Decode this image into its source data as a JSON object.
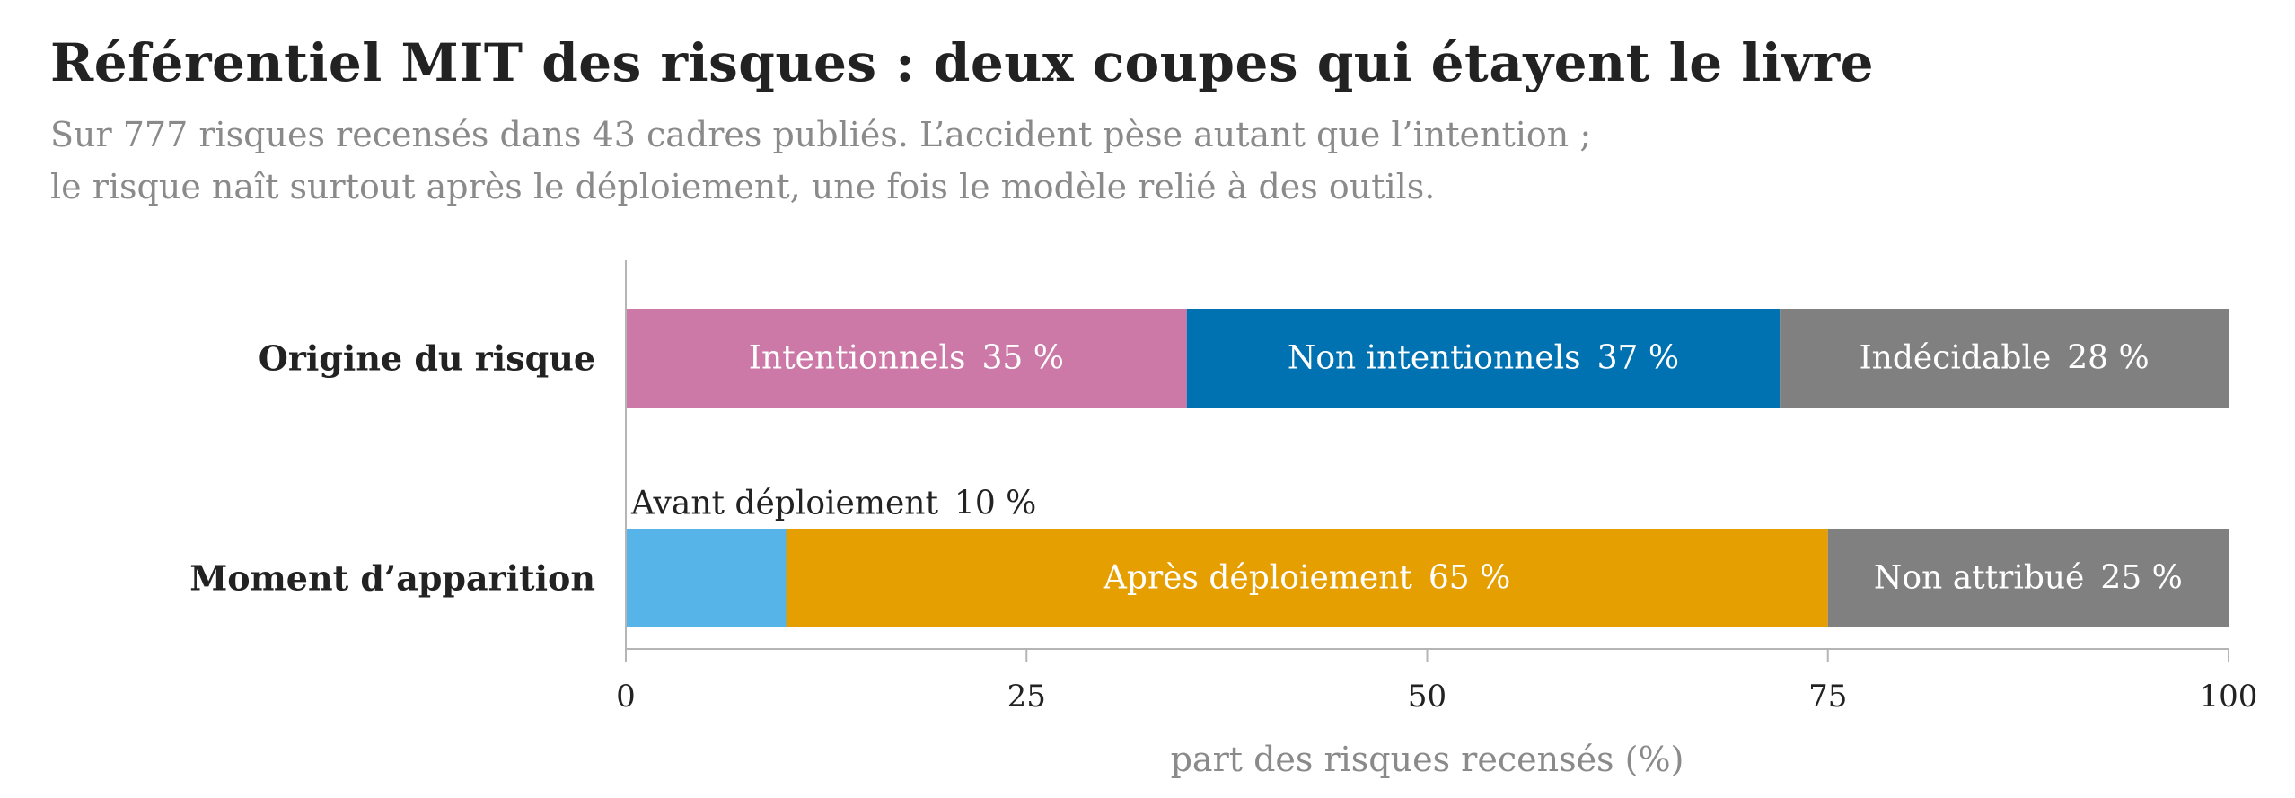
{
  "chart_data": {
    "type": "bar",
    "orientation": "horizontal",
    "stacked": true,
    "title": "Référentiel MIT des risques : deux coupes qui étayent le livre",
    "subtitle_lines": [
      "Sur 777 risques recensés dans 43 cadres publiés. L’accident pèse autant que l’intention ;",
      "le risque naît surtout après le déploiement, une fois le modèle relié à des outils."
    ],
    "xlabel": "part des risques recensés (%)",
    "xlim": [
      0,
      100
    ],
    "xticks": [
      0,
      25,
      50,
      75,
      100
    ],
    "grid": false,
    "categories": [
      "Origine du risque",
      "Moment d’apparition"
    ],
    "rows": [
      {
        "category": "Origine du risque",
        "segments": [
          {
            "label": "Intentionnels",
            "value": 35,
            "value_text": "35 %",
            "color": "#CC79A7",
            "label_position": "inside"
          },
          {
            "label": "Non intentionnels",
            "value": 37,
            "value_text": "37 %",
            "color": "#0072B2",
            "label_position": "inside"
          },
          {
            "label": "Indécidable",
            "value": 28,
            "value_text": "28 %",
            "color": "#808080",
            "label_position": "inside"
          }
        ]
      },
      {
        "category": "Moment d’apparition",
        "segments": [
          {
            "label": "Avant déploiement",
            "value": 10,
            "value_text": "10 %",
            "color": "#56B4E9",
            "label_position": "above"
          },
          {
            "label": "Après déploiement",
            "value": 65,
            "value_text": "65 %",
            "color": "#E69F00",
            "label_position": "inside"
          },
          {
            "label": "Non attribué",
            "value": 25,
            "value_text": "25 %",
            "color": "#808080",
            "label_position": "inside"
          }
        ]
      }
    ]
  }
}
